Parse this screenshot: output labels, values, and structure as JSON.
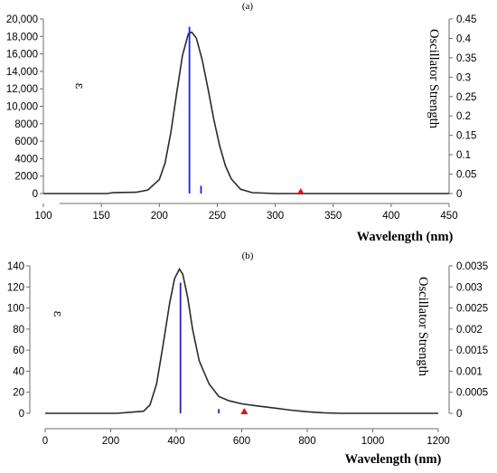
{
  "chart_data": [
    {
      "type": "line",
      "panel_label": "(a)",
      "xlabel": "Wavelength (nm)",
      "ylabel_left": "ε",
      "ylabel_right": "Oscillator Strength",
      "xlim": [
        100,
        450
      ],
      "ylim_left": [
        0,
        20000
      ],
      "ylim_right": [
        0,
        0.45
      ],
      "x_ticks": [
        100,
        150,
        200,
        250,
        300,
        350,
        400,
        450
      ],
      "x_tick_labels": [
        "100",
        "150",
        "200",
        "250",
        "300",
        "350",
        "400",
        "450"
      ],
      "y_left_ticks": [
        0,
        2000,
        4000,
        6000,
        8000,
        10000,
        12000,
        14000,
        16000,
        18000,
        20000
      ],
      "y_left_tick_labels": [
        "0",
        "2000",
        "4000",
        "6000",
        "8000",
        "10,000",
        "12,000",
        "14,000",
        "16,000",
        "18,000",
        "20,000"
      ],
      "y_right_ticks": [
        0,
        0.05,
        0.1,
        0.15,
        0.2,
        0.25,
        0.3,
        0.35,
        0.4,
        0.45
      ],
      "y_right_tick_labels": [
        "0",
        "0.05",
        "0.1",
        "0.15",
        "0.2",
        "0.25",
        "0.3",
        "0.35",
        "0.4",
        "0.45"
      ],
      "curve": {
        "x": [
          100,
          155,
          160,
          180,
          190,
          200,
          205,
          210,
          215,
          220,
          225,
          228,
          232,
          237,
          242,
          247,
          252,
          257,
          262,
          270,
          280,
          300,
          350,
          400,
          450
        ],
        "y": [
          0,
          0,
          100,
          150,
          400,
          1600,
          3500,
          7000,
          11500,
          15800,
          18300,
          18500,
          17800,
          15300,
          12000,
          8500,
          5500,
          3200,
          1700,
          500,
          100,
          0,
          0,
          0,
          0
        ]
      },
      "sticks": [
        {
          "x": 226,
          "f": 0.43,
          "color": "#2020e0"
        },
        {
          "x": 236,
          "f": 0.02,
          "color": "#2020e0"
        }
      ],
      "markers": [
        {
          "x": 322,
          "y": 0,
          "color": "#e01010",
          "shape": "triangle"
        }
      ]
    },
    {
      "type": "line",
      "panel_label": "(b)",
      "xlabel": "Wavelength (nm)",
      "ylabel_left": "ε",
      "ylabel_right": "Oscillator Strength",
      "xlim": [
        0,
        1200
      ],
      "ylim_left": [
        0,
        140
      ],
      "ylim_right": [
        0,
        0.0035
      ],
      "x_ticks": [
        0,
        200,
        400,
        600,
        800,
        1000,
        1200
      ],
      "x_tick_labels": [
        "0",
        "200",
        "400",
        "600",
        "800",
        "1000",
        "1200"
      ],
      "y_left_ticks": [
        0,
        20,
        40,
        60,
        80,
        100,
        120,
        140
      ],
      "y_left_tick_labels": [
        "0",
        "20",
        "40",
        "60",
        "80",
        "100",
        "120",
        "140"
      ],
      "y_right_ticks": [
        0,
        0.0005,
        0.001,
        0.0015,
        0.002,
        0.0025,
        0.003,
        0.0035
      ],
      "y_right_tick_labels": [
        "0",
        "0.0005",
        "0.001",
        "0.0015",
        "0.002",
        "0.0025",
        "0.003",
        "0.0035"
      ],
      "curve": {
        "x": [
          0,
          220,
          260,
          300,
          320,
          340,
          360,
          380,
          395,
          410,
          420,
          435,
          450,
          470,
          500,
          530,
          560,
          600,
          650,
          700,
          750,
          800,
          850,
          900,
          1000,
          1100,
          1200
        ],
        "y": [
          0,
          0,
          1,
          2,
          8,
          28,
          65,
          105,
          128,
          137,
          132,
          110,
          80,
          50,
          28,
          16,
          12,
          9,
          7,
          5,
          3,
          1.5,
          0.5,
          0,
          0,
          0,
          0
        ]
      },
      "sticks": [
        {
          "x": 413,
          "f": 0.0031,
          "color": "#2020e0"
        },
        {
          "x": 530,
          "f": 0.0001,
          "color": "#2020e0"
        }
      ],
      "markers": [
        {
          "x": 608,
          "y": 0,
          "color": "#e01010",
          "shape": "triangle"
        }
      ]
    }
  ]
}
